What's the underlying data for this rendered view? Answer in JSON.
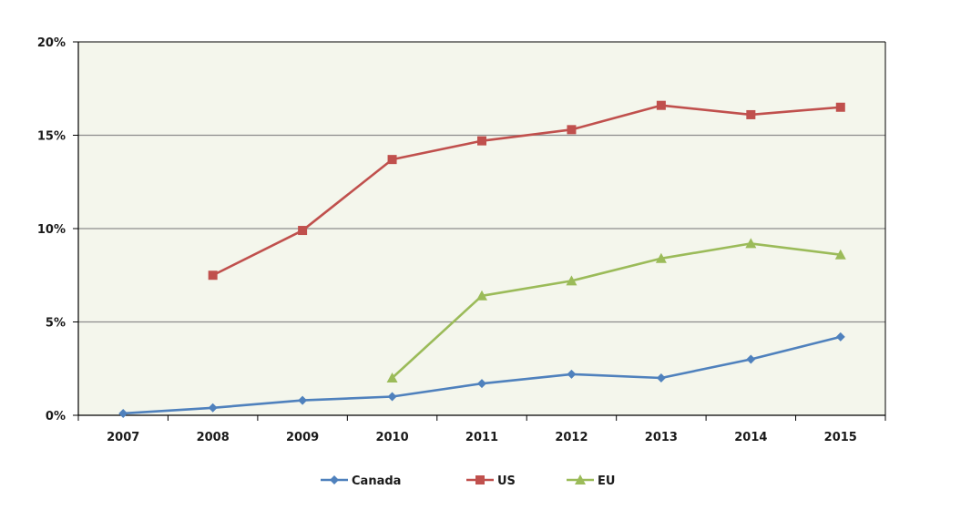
{
  "chart_data": {
    "type": "line",
    "title": "",
    "xlabel": "",
    "ylabel": "",
    "x": [
      "2007",
      "2008",
      "2009",
      "2010",
      "2011",
      "2012",
      "2013",
      "2014",
      "2015"
    ],
    "ylim": [
      0,
      20
    ],
    "yticks": [
      0,
      5,
      10,
      15,
      20
    ],
    "ytick_labels": [
      "0%",
      "5%",
      "10%",
      "15%",
      "20%"
    ],
    "grid": true,
    "legend": "bottom",
    "plot_background": "#f4f6ec",
    "series": [
      {
        "name": "Canada",
        "color": "#4f81bd",
        "marker": "diamond",
        "values": [
          0.1,
          0.4,
          0.8,
          1.0,
          1.7,
          2.2,
          2.0,
          3.0,
          4.2
        ]
      },
      {
        "name": "US",
        "color": "#c0504d",
        "marker": "square",
        "values": [
          null,
          7.5,
          9.9,
          13.7,
          14.7,
          15.3,
          16.6,
          16.1,
          16.5
        ]
      },
      {
        "name": "EU",
        "color": "#9bbb59",
        "marker": "triangle",
        "values": [
          null,
          null,
          null,
          2.0,
          6.4,
          7.2,
          8.4,
          9.2,
          8.6
        ]
      }
    ]
  }
}
